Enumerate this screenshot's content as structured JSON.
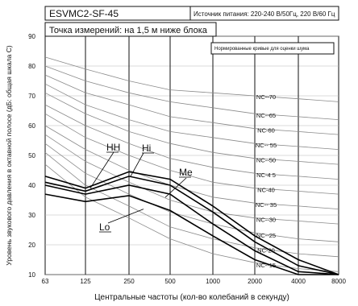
{
  "chart_data": {
    "type": "line",
    "model_label": "ESVMC2-SF-45",
    "power_label": "Источник питания: 220-240 В/50Гц, 220 В/60 Гц",
    "measure_label": "Точка измерений: на 1,5 м ниже блока",
    "nc_box_title": "Нормированные кривые для оценки шума",
    "xlabel": "Центральные частоты (кол-во колебаний в секунду)",
    "ylabel": "Уровень звукового давления в октавной полосе (дБ: общая шкала С)",
    "x_ticks": [
      "63",
      "125",
      "250",
      "500",
      "1000",
      "2000",
      "4000",
      "8000"
    ],
    "y_ticks": [
      10,
      20,
      30,
      40,
      50,
      60,
      70,
      80,
      90
    ],
    "ylim": [
      10,
      90
    ],
    "series": [
      {
        "name": "HH",
        "values": [
          43,
          39,
          44.5,
          42,
          33,
          23,
          15,
          10
        ]
      },
      {
        "name": "Hi",
        "values": [
          41,
          38,
          43,
          40,
          31,
          21,
          13,
          10
        ]
      },
      {
        "name": "Me",
        "values": [
          40,
          37,
          40,
          37,
          27,
          18,
          11,
          10
        ]
      },
      {
        "name": "Lo",
        "values": [
          37,
          34.5,
          36.5,
          31.5,
          23,
          15,
          10,
          10
        ]
      }
    ],
    "nc_curves": [
      {
        "label": "NC--70",
        "values": [
          83,
          79,
          75,
          72,
          71,
          70,
          69,
          68
        ]
      },
      {
        "label": "NC--65",
        "values": [
          80,
          75,
          71,
          68,
          66,
          64,
          63,
          62
        ]
      },
      {
        "label": "NC-60",
        "values": [
          77,
          71,
          67,
          63,
          61,
          59,
          58,
          57
        ]
      },
      {
        "label": "NC-- 55",
        "values": [
          74,
          67,
          62,
          58,
          56,
          54,
          53,
          52
        ]
      },
      {
        "label": "NC--50",
        "values": [
          71,
          64,
          58,
          54,
          51,
          49,
          48,
          47
        ]
      },
      {
        "label": "NC-4 5",
        "values": [
          67,
          60,
          54,
          49,
          46,
          44,
          43,
          42
        ]
      },
      {
        "label": "NC-40",
        "values": [
          64,
          56,
          50,
          45,
          41,
          39,
          38,
          37
        ]
      },
      {
        "label": "NC-- 35",
        "values": [
          60,
          52,
          45,
          40,
          36,
          34,
          33,
          32
        ]
      },
      {
        "label": "NC--30",
        "values": [
          57,
          48,
          41,
          35,
          31,
          29,
          28,
          27
        ]
      },
      {
        "label": "NC--25",
        "values": [
          54,
          44,
          37,
          31,
          27,
          24,
          22,
          21
        ]
      },
      {
        "label": "NC-20",
        "values": [
          51,
          40,
          33,
          26,
          22,
          19,
          17,
          16
        ]
      },
      {
        "label": "NC--15",
        "values": [
          47,
          36,
          29,
          22,
          17,
          14,
          12,
          11
        ]
      }
    ],
    "grid": true
  }
}
